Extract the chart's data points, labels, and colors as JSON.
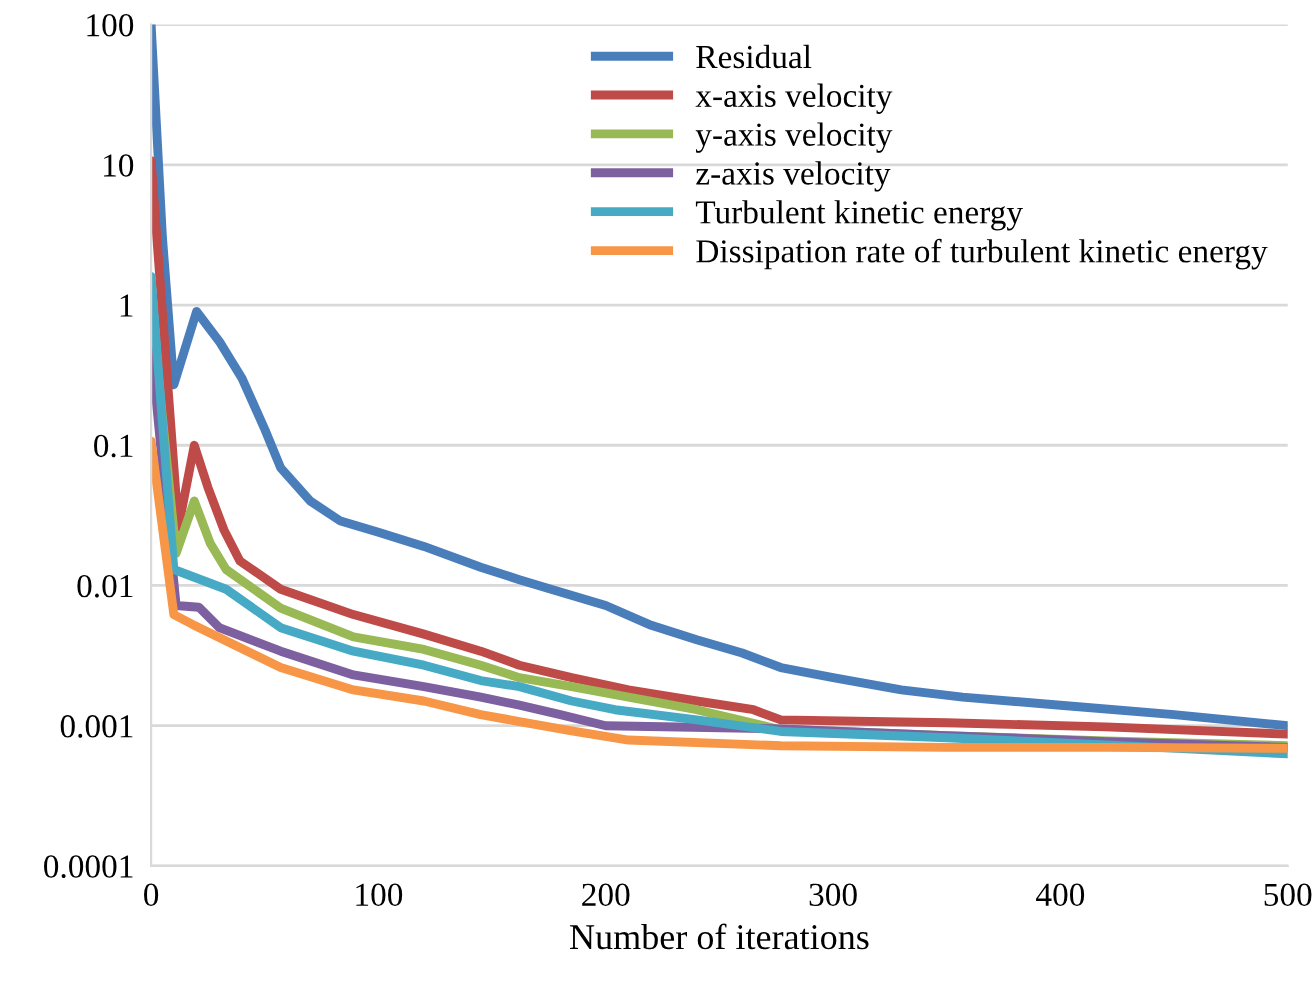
{
  "chart_data": {
    "type": "line",
    "xlabel": "Number of iterations",
    "log": "y",
    "grid": "y",
    "legend": "top right",
    "marker": "none",
    "line_style": "solid",
    "xlim": [
      0,
      500
    ],
    "xticks": [
      0,
      100,
      200,
      300,
      400,
      500
    ],
    "ylim": [
      0.0001,
      100
    ],
    "yticks": [
      {
        "value": 0.0001,
        "label": "0.0001"
      },
      {
        "value": 0.001,
        "label": "0.001"
      },
      {
        "value": 0.01,
        "label": "0.01"
      },
      {
        "value": 0.1,
        "label": "0.1"
      },
      {
        "value": 1,
        "label": "1"
      },
      {
        "value": 10,
        "label": "10"
      },
      {
        "value": 100,
        "label": "100"
      }
    ],
    "series": [
      {
        "name": "Residual",
        "color": "#4a7ebb",
        "x": [
          0,
          5,
          10,
          20,
          30,
          40,
          50,
          57,
          70,
          83,
          100,
          120,
          145,
          162,
          180,
          200,
          220,
          240,
          260,
          277,
          300,
          330,
          357,
          400,
          450,
          500
        ],
        "values": [
          100,
          3,
          0.27,
          0.9,
          0.55,
          0.3,
          0.13,
          0.069,
          0.04,
          0.029,
          0.024,
          0.019,
          0.0135,
          0.011,
          0.009,
          0.0072,
          0.0052,
          0.0041,
          0.0033,
          0.0026,
          0.0022,
          0.0018,
          0.0016,
          0.0014,
          0.0012,
          0.001
        ]
      },
      {
        "name": "x-axis velocity",
        "color": "#be4b48",
        "x": [
          0,
          12,
          19,
          25,
          32,
          39,
          57,
          89,
          120,
          145,
          162,
          185,
          210,
          240,
          265,
          277,
          350,
          420,
          500
        ],
        "values": [
          10.7,
          0.026,
          0.1,
          0.05,
          0.025,
          0.015,
          0.0094,
          0.0062,
          0.0045,
          0.0034,
          0.0027,
          0.0022,
          0.0018,
          0.0015,
          0.0013,
          0.0011,
          0.00105,
          0.00098,
          0.00087
        ]
      },
      {
        "name": "y-axis velocity",
        "color": "#98b954",
        "x": [
          0,
          11,
          19,
          26,
          33,
          57,
          89,
          120,
          145,
          162,
          185,
          210,
          240,
          275,
          350,
          420,
          500
        ],
        "values": [
          1,
          0.017,
          0.04,
          0.02,
          0.013,
          0.0069,
          0.0043,
          0.0035,
          0.0027,
          0.0022,
          0.0019,
          0.0016,
          0.0013,
          0.00095,
          0.00085,
          0.00078,
          0.00072
        ]
      },
      {
        "name": "z-axis velocity",
        "color": "#7d60a0",
        "x": [
          0,
          11,
          21,
          30,
          57,
          89,
          120,
          145,
          162,
          180,
          200,
          277,
          350,
          420,
          500
        ],
        "values": [
          0.5,
          0.0072,
          0.007,
          0.005,
          0.0034,
          0.0023,
          0.0019,
          0.0016,
          0.0014,
          0.0012,
          0.001,
          0.00095,
          0.00085,
          0.00077,
          0.0007
        ]
      },
      {
        "name": "Turbulent kinetic energy",
        "color": "#46aac5",
        "x": [
          0,
          10,
          33,
          57,
          89,
          120,
          145,
          162,
          185,
          204,
          240,
          277,
          350,
          420,
          500
        ],
        "values": [
          1.6,
          0.013,
          0.0094,
          0.005,
          0.0034,
          0.0027,
          0.0021,
          0.0019,
          0.0015,
          0.0013,
          0.0011,
          0.00091,
          0.00082,
          0.00073,
          0.00063
        ]
      },
      {
        "name": "Dissipation rate of turbulent kinetic energy",
        "color": "#f79646",
        "x": [
          0,
          10,
          18,
          57,
          89,
          120,
          145,
          162,
          185,
          210,
          277,
          350,
          420,
          500
        ],
        "values": [
          0.107,
          0.0062,
          0.0053,
          0.0026,
          0.0018,
          0.0015,
          0.0012,
          0.00107,
          0.00092,
          0.00079,
          0.00072,
          0.0007,
          0.0007,
          0.00069
        ]
      }
    ]
  }
}
